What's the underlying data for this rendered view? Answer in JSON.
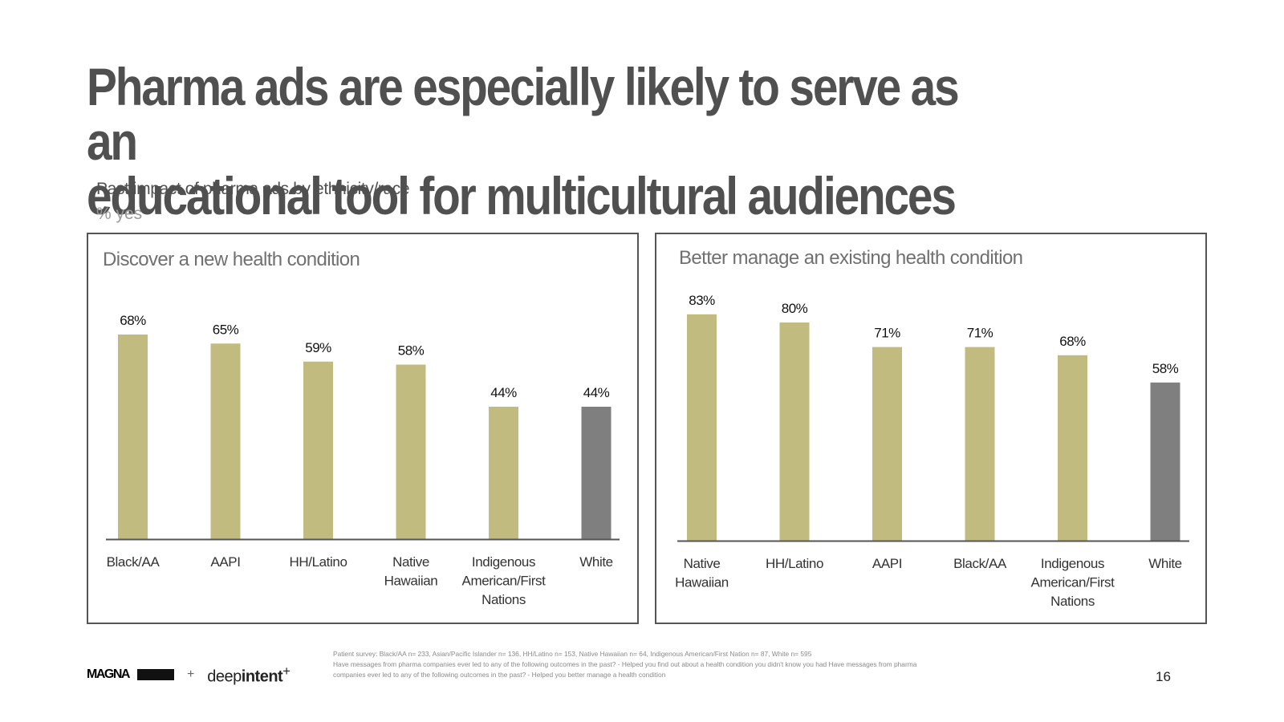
{
  "slide": {
    "title_line1": "Pharma ads are especially likely to serve as an",
    "title_line2": "educational tool for multicultural audiences",
    "subtitle": "Past impact of pharma ads by ethnicity/race",
    "unit": "% yes",
    "footnote_line1": "Patient survey: Black/AA n= 233, Asian/Pacific Islander n= 136, HH/Latino n= 153, Native Hawaiian n= 64, Indigenous American/First Nation n= 87, White n= 595",
    "footnote_line2": "Have messages from pharma companies ever led to any of the following outcomes in the past? - Helped you find out about a health condition you didn't know you had Have messages from pharma",
    "footnote_line3": "companies ever led to any of the following outcomes in the past? - Helped you better manage a health condition",
    "page_number": "16",
    "logo_magna": "MAGNA",
    "logo_plus": "+",
    "logo_deep": "deep",
    "logo_intent": "intent",
    "logo_sup": "+"
  },
  "chart_data": [
    {
      "type": "bar",
      "title": "Discover a new health condition",
      "categories": [
        "Black/AA",
        "AAPI",
        "HH/Latino",
        "Native Hawaiian",
        "Indigenous American/First Nations",
        "White"
      ],
      "category_lines": [
        [
          "Black/AA"
        ],
        [
          "AAPI"
        ],
        [
          "HH/Latino"
        ],
        [
          "Native",
          "Hawaiian"
        ],
        [
          "Indigenous",
          "American/First",
          "Nations"
        ],
        [
          "White"
        ]
      ],
      "values": [
        68,
        65,
        59,
        58,
        44,
        44
      ],
      "value_labels": [
        "68%",
        "65%",
        "59%",
        "58%",
        "44%",
        "44%"
      ],
      "colors": [
        "#c2bb80",
        "#c2bb80",
        "#c2bb80",
        "#c2bb80",
        "#c2bb80",
        "#7f7f7f"
      ],
      "ylim": [
        0,
        100
      ],
      "grid": false
    },
    {
      "type": "bar",
      "title": "Better manage an existing health condition",
      "categories": [
        "Native Hawaiian",
        "HH/Latino",
        "AAPI",
        "Black/AA",
        "Indigenous American/First Nations",
        "White"
      ],
      "category_lines": [
        [
          "Native",
          "Hawaiian"
        ],
        [
          "HH/Latino"
        ],
        [
          "AAPI"
        ],
        [
          "Black/AA"
        ],
        [
          "Indigenous",
          "American/First",
          "Nations"
        ],
        [
          "White"
        ]
      ],
      "values": [
        83,
        80,
        71,
        71,
        68,
        58
      ],
      "value_labels": [
        "83%",
        "80%",
        "71%",
        "71%",
        "68%",
        "58%"
      ],
      "colors": [
        "#c2bb80",
        "#c2bb80",
        "#c2bb80",
        "#c2bb80",
        "#c2bb80",
        "#7f7f7f"
      ],
      "ylim": [
        0,
        100
      ],
      "grid": false
    }
  ]
}
